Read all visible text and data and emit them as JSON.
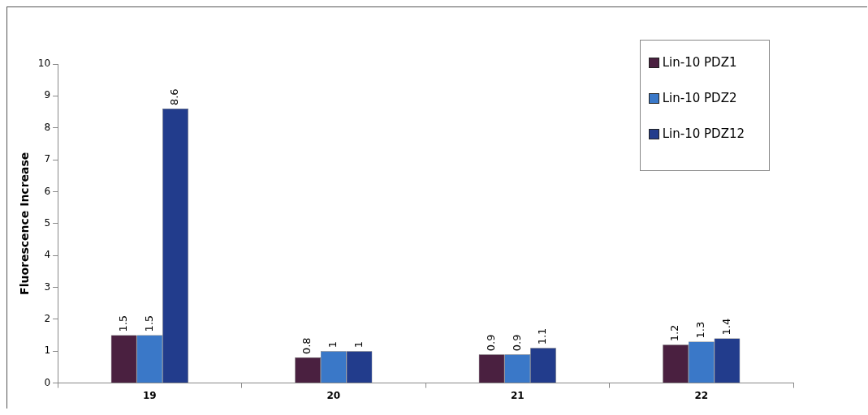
{
  "chart_data": {
    "type": "bar",
    "ylabel": "Fluorescence Increase",
    "categories": [
      "19",
      "20",
      "21",
      "22"
    ],
    "series": [
      {
        "name": "Lin-10 PDZ1",
        "color": "#4a2040",
        "values": [
          1.5,
          0.8,
          0.9,
          1.2
        ]
      },
      {
        "name": "Lin-10 PDZ2",
        "color": "#3a78c8",
        "values": [
          1.5,
          1,
          0.9,
          1.3
        ]
      },
      {
        "name": "Lin-10 PDZ12",
        "color": "#223c8c",
        "values": [
          8.6,
          1,
          1.1,
          1.4
        ]
      }
    ],
    "ylim": [
      0,
      10
    ],
    "yticks": [
      0,
      1,
      2,
      3,
      4,
      5,
      6,
      7,
      8,
      9,
      10
    ],
    "grid": false,
    "legend": "top right",
    "data_labels": true
  }
}
